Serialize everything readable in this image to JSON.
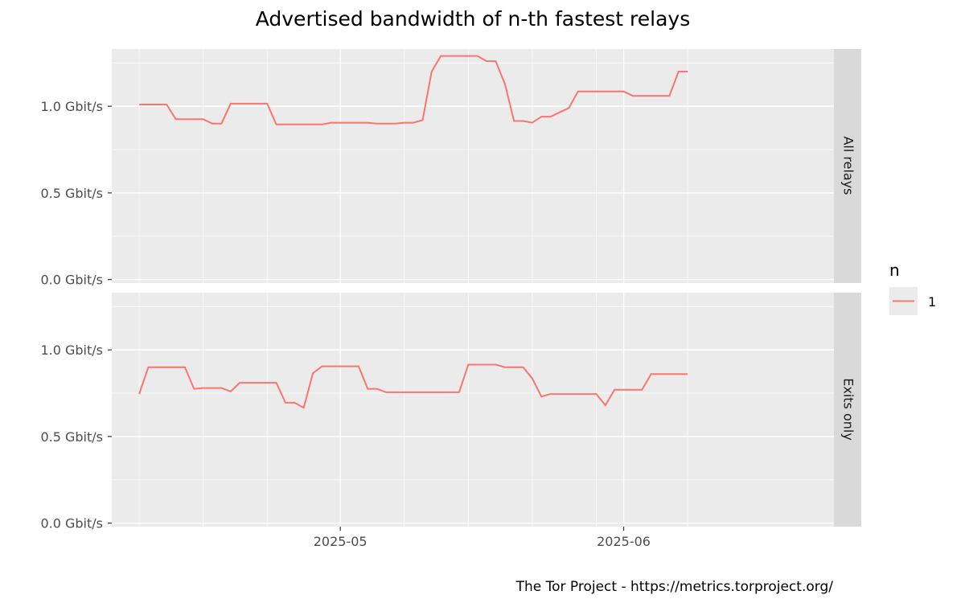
{
  "chart_data": {
    "type": "line",
    "title": "Advertised bandwidth of n-th fastest relays",
    "caption": "The Tor Project - https://metrics.torproject.org/",
    "x_ticks": [
      "2025-05",
      "2025-06"
    ],
    "y_ticks": [
      "0.0 Gbit/s",
      "0.5 Gbit/s",
      "1.0 Gbit/s"
    ],
    "y_tick_values": [
      0,
      0.5,
      1.0
    ],
    "ylim": [
      -0.02,
      1.33
    ],
    "xlim": [
      "2025-04-06",
      "2025-06-24"
    ],
    "facets": [
      "All relays",
      "Exits only"
    ],
    "legend_title": "n",
    "legend_position": "right",
    "grid": true,
    "series_color": "#F8766D",
    "series": [
      {
        "name": "1",
        "facet": "All relays",
        "x": [
          "2025-04-09",
          "2025-04-10",
          "2025-04-11",
          "2025-04-12",
          "2025-04-13",
          "2025-04-14",
          "2025-04-15",
          "2025-04-16",
          "2025-04-17",
          "2025-04-18",
          "2025-04-19",
          "2025-04-20",
          "2025-04-21",
          "2025-04-22",
          "2025-04-23",
          "2025-04-24",
          "2025-04-25",
          "2025-04-26",
          "2025-04-27",
          "2025-04-28",
          "2025-04-29",
          "2025-04-30",
          "2025-05-01",
          "2025-05-02",
          "2025-05-03",
          "2025-05-04",
          "2025-05-05",
          "2025-05-06",
          "2025-05-07",
          "2025-05-08",
          "2025-05-09",
          "2025-05-10",
          "2025-05-11",
          "2025-05-12",
          "2025-05-13",
          "2025-05-14",
          "2025-05-15",
          "2025-05-16",
          "2025-05-17",
          "2025-05-18",
          "2025-05-19",
          "2025-05-20",
          "2025-05-21",
          "2025-05-22",
          "2025-05-23",
          "2025-05-24",
          "2025-05-25",
          "2025-05-26",
          "2025-05-27",
          "2025-05-28",
          "2025-05-29",
          "2025-05-30",
          "2025-05-31",
          "2025-06-01",
          "2025-06-02",
          "2025-06-03",
          "2025-06-04",
          "2025-06-05",
          "2025-06-06",
          "2025-06-07",
          "2025-06-08"
        ],
        "values": [
          1.01,
          1.01,
          1.01,
          1.01,
          0.925,
          0.925,
          0.925,
          0.925,
          0.9,
          0.9,
          1.015,
          1.015,
          1.015,
          1.015,
          1.015,
          0.895,
          0.895,
          0.895,
          0.895,
          0.895,
          0.895,
          0.905,
          0.905,
          0.905,
          0.905,
          0.905,
          0.9,
          0.9,
          0.9,
          0.905,
          0.905,
          0.92,
          1.2,
          1.29,
          1.29,
          1.29,
          1.29,
          1.29,
          1.26,
          1.26,
          1.13,
          0.915,
          0.915,
          0.905,
          0.94,
          0.94,
          0.965,
          0.99,
          1.085,
          1.085,
          1.085,
          1.085,
          1.085,
          1.085,
          1.06,
          1.06,
          1.06,
          1.06,
          1.06,
          1.2,
          1.2
        ]
      },
      {
        "name": "1",
        "facet": "Exits only",
        "x": [
          "2025-04-09",
          "2025-04-10",
          "2025-04-11",
          "2025-04-12",
          "2025-04-13",
          "2025-04-14",
          "2025-04-15",
          "2025-04-16",
          "2025-04-17",
          "2025-04-18",
          "2025-04-19",
          "2025-04-20",
          "2025-04-21",
          "2025-04-22",
          "2025-04-23",
          "2025-04-24",
          "2025-04-25",
          "2025-04-26",
          "2025-04-27",
          "2025-04-28",
          "2025-04-29",
          "2025-04-30",
          "2025-05-01",
          "2025-05-02",
          "2025-05-03",
          "2025-05-04",
          "2025-05-05",
          "2025-05-06",
          "2025-05-07",
          "2025-05-08",
          "2025-05-09",
          "2025-05-10",
          "2025-05-11",
          "2025-05-12",
          "2025-05-13",
          "2025-05-14",
          "2025-05-15",
          "2025-05-16",
          "2025-05-17",
          "2025-05-18",
          "2025-05-19",
          "2025-05-20",
          "2025-05-21",
          "2025-05-22",
          "2025-05-23",
          "2025-05-24",
          "2025-05-25",
          "2025-05-26",
          "2025-05-27",
          "2025-05-28",
          "2025-05-29",
          "2025-05-30",
          "2025-05-31",
          "2025-06-01",
          "2025-06-02",
          "2025-06-03",
          "2025-06-04",
          "2025-06-05",
          "2025-06-06",
          "2025-06-07",
          "2025-06-08"
        ],
        "values": [
          0.745,
          0.9,
          0.9,
          0.9,
          0.9,
          0.9,
          0.775,
          0.78,
          0.78,
          0.78,
          0.76,
          0.81,
          0.81,
          0.81,
          0.81,
          0.81,
          0.695,
          0.695,
          0.665,
          0.865,
          0.905,
          0.905,
          0.905,
          0.905,
          0.905,
          0.775,
          0.775,
          0.755,
          0.755,
          0.755,
          0.755,
          0.755,
          0.755,
          0.755,
          0.755,
          0.755,
          0.915,
          0.915,
          0.915,
          0.915,
          0.9,
          0.9,
          0.9,
          0.835,
          0.73,
          0.745,
          0.745,
          0.745,
          0.745,
          0.745,
          0.745,
          0.68,
          0.77,
          0.77,
          0.77,
          0.77,
          0.86,
          0.86,
          0.86,
          0.86,
          0.86
        ]
      }
    ]
  }
}
